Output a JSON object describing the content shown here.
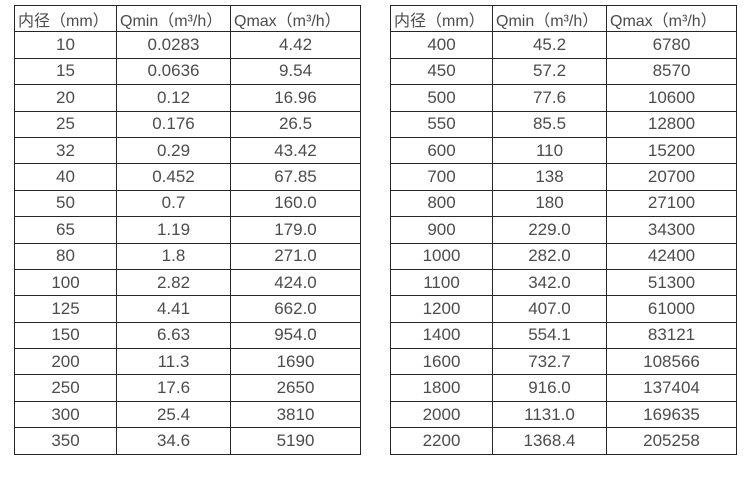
{
  "colors": {
    "background": "#ffffff",
    "border": "#262626",
    "text": "#4c4c4c"
  },
  "chart_data": [
    {
      "type": "table",
      "title": "",
      "columns": [
        "内径（mm）",
        "Qmin（m³/h）",
        "Qmax（m³/h）"
      ],
      "rows": [
        [
          "10",
          "0.0283",
          "4.42"
        ],
        [
          "15",
          "0.0636",
          "9.54"
        ],
        [
          "20",
          "0.12",
          "16.96"
        ],
        [
          "25",
          "0.176",
          "26.5"
        ],
        [
          "32",
          "0.29",
          "43.42"
        ],
        [
          "40",
          "0.452",
          "67.85"
        ],
        [
          "50",
          "0.7",
          "160.0"
        ],
        [
          "65",
          "1.19",
          "179.0"
        ],
        [
          "80",
          "1.8",
          "271.0"
        ],
        [
          "100",
          "2.82",
          "424.0"
        ],
        [
          "125",
          "4.41",
          "662.0"
        ],
        [
          "150",
          "6.63",
          "954.0"
        ],
        [
          "200",
          "11.3",
          "1690"
        ],
        [
          "250",
          "17.6",
          "2650"
        ],
        [
          "300",
          "25.4",
          "3810"
        ],
        [
          "350",
          "34.6",
          "5190"
        ]
      ]
    },
    {
      "type": "table",
      "title": "",
      "columns": [
        "内径（mm）",
        "Qmin（m³/h）",
        "Qmax（m³/h）"
      ],
      "rows": [
        [
          "400",
          "45.2",
          "6780"
        ],
        [
          "450",
          "57.2",
          "8570"
        ],
        [
          "500",
          "77.6",
          "10600"
        ],
        [
          "550",
          "85.5",
          "12800"
        ],
        [
          "600",
          "110",
          "15200"
        ],
        [
          "700",
          "138",
          "20700"
        ],
        [
          "800",
          "180",
          "27100"
        ],
        [
          "900",
          "229.0",
          "34300"
        ],
        [
          "1000",
          "282.0",
          "42400"
        ],
        [
          "1100",
          "342.0",
          "51300"
        ],
        [
          "1200",
          "407.0",
          "61000"
        ],
        [
          "1400",
          "554.1",
          "83121"
        ],
        [
          "1600",
          "732.7",
          "108566"
        ],
        [
          "1800",
          "916.0",
          "137404"
        ],
        [
          "2000",
          "1131.0",
          "169635"
        ],
        [
          "2200",
          "1368.4",
          "205258"
        ]
      ]
    }
  ]
}
